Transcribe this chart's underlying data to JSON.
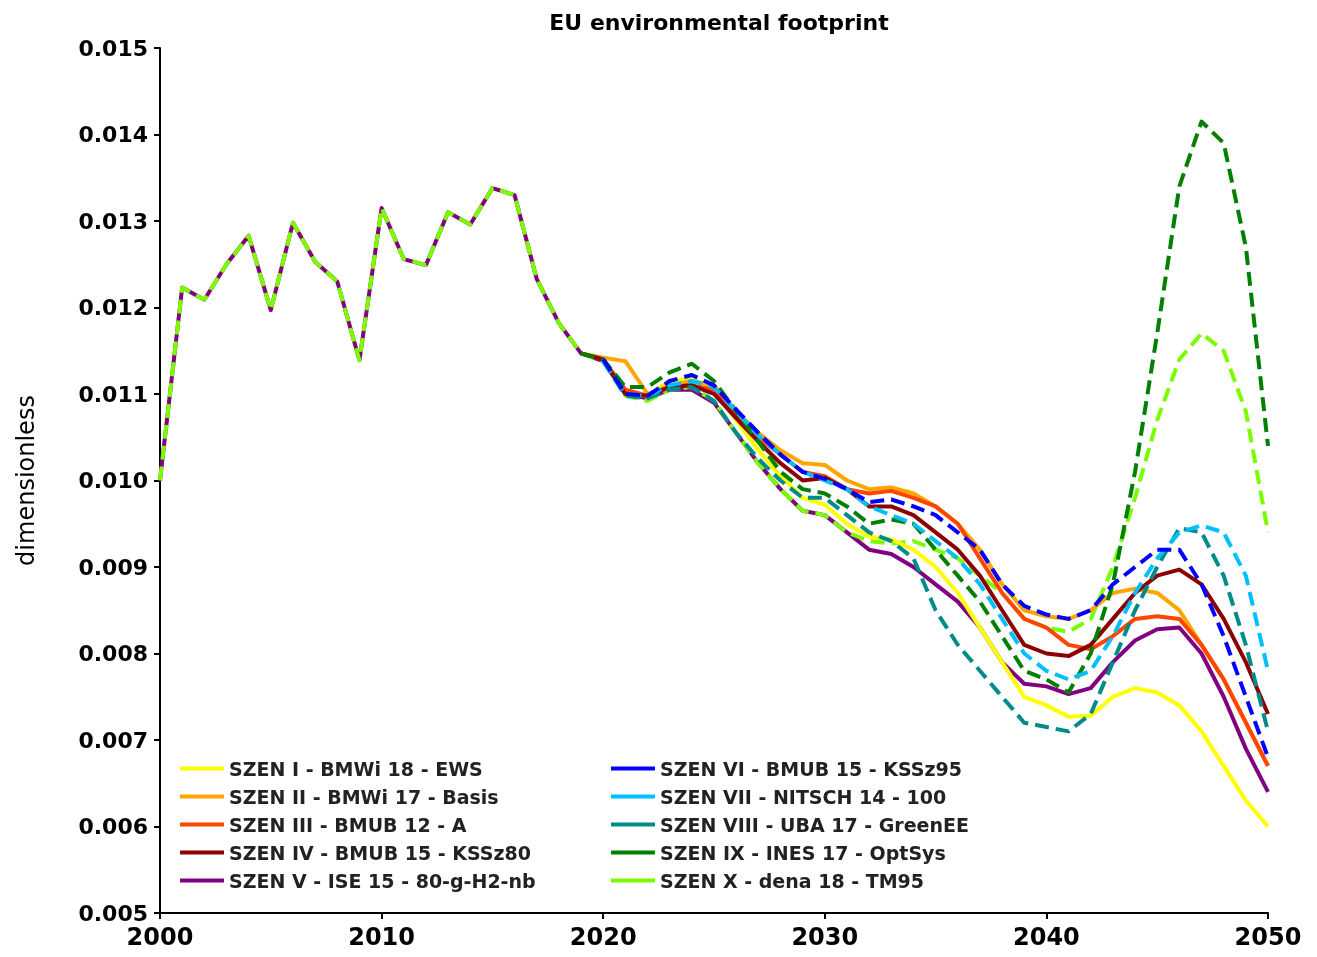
{
  "chart_data": {
    "type": "line",
    "title": "EU environmental footprint",
    "ylabel": "dimensionless",
    "x": [
      2000,
      2001,
      2002,
      2003,
      2004,
      2005,
      2006,
      2007,
      2008,
      2009,
      2010,
      2011,
      2012,
      2013,
      2014,
      2015,
      2016,
      2017,
      2018,
      2019,
      2020,
      2021,
      2022,
      2023,
      2024,
      2025,
      2026,
      2027,
      2028,
      2029,
      2030,
      2031,
      2032,
      2033,
      2034,
      2035,
      2036,
      2037,
      2038,
      2039,
      2040,
      2041,
      2042,
      2043,
      2044,
      2045,
      2046,
      2047,
      2048,
      2049,
      2050
    ],
    "xlim": [
      2000,
      2050
    ],
    "xticks": [
      2000,
      2010,
      2020,
      2030,
      2040,
      2050
    ],
    "ylim": [
      0.005,
      0.015
    ],
    "yticks": [
      {
        "value": 0.005,
        "label": "0.005"
      },
      {
        "value": 0.006,
        "label": "0.006"
      },
      {
        "value": 0.007,
        "label": "0.007"
      },
      {
        "value": 0.008,
        "label": "0.008"
      },
      {
        "value": 0.009,
        "label": "0.009"
      },
      {
        "value": 0.01,
        "label": "0.010"
      },
      {
        "value": 0.011,
        "label": "0.011"
      },
      {
        "value": 0.012,
        "label": "0.012"
      },
      {
        "value": 0.013,
        "label": "0.013"
      },
      {
        "value": 0.014,
        "label": "0.014"
      },
      {
        "value": 0.015,
        "label": "0.015"
      }
    ],
    "grid": false,
    "legend": "bottom left",
    "marker": "none",
    "series": [
      {
        "name": "SZEN I - BMWi 18 - EWS",
        "color": "#ffff00",
        "line_style": "solid",
        "values": [
          null,
          null,
          null,
          null,
          null,
          null,
          null,
          null,
          null,
          null,
          null,
          null,
          null,
          null,
          null,
          null,
          null,
          null,
          null,
          null,
          null,
          0.011,
          0.01098,
          0.01115,
          0.01118,
          0.01105,
          0.0107,
          0.01035,
          0.01005,
          0.0098,
          0.00972,
          0.0095,
          0.00935,
          0.00932,
          0.0092,
          0.009,
          0.0087,
          0.0083,
          0.0079,
          0.0075,
          0.0074,
          0.00727,
          0.00728,
          0.0075,
          0.0076,
          0.00755,
          0.0074,
          0.0071,
          0.0067,
          0.0063,
          0.006
        ]
      },
      {
        "name": "SZEN II - BMWi 17 - Basis",
        "color": "#ffa500",
        "line_style": "solid",
        "values": [
          null,
          null,
          null,
          null,
          null,
          null,
          null,
          null,
          null,
          null,
          null,
          null,
          null,
          null,
          null,
          null,
          null,
          null,
          null,
          0.01147,
          0.01142,
          0.01138,
          0.011,
          0.0111,
          0.01115,
          0.0111,
          0.0108,
          0.01055,
          0.01035,
          0.0102,
          0.01018,
          0.01,
          0.0099,
          0.00992,
          0.00985,
          0.0097,
          0.0095,
          0.0092,
          0.0088,
          0.0085,
          0.00843,
          0.0084,
          0.0085,
          0.0087,
          0.00875,
          0.0087,
          0.0085,
          0.0081,
          0.0077,
          0.0072,
          0.0067
        ]
      },
      {
        "name": "SZEN III - BMUB 12 - A",
        "color": "#ff4500",
        "line_style": "solid",
        "values": [
          null,
          null,
          null,
          null,
          null,
          null,
          null,
          null,
          null,
          null,
          null,
          null,
          null,
          null,
          null,
          null,
          null,
          null,
          null,
          0.01147,
          0.0114,
          0.01105,
          0.01098,
          0.01108,
          0.0111,
          0.01105,
          0.01075,
          0.0105,
          0.0103,
          0.0101,
          0.01005,
          0.0099,
          0.00985,
          0.00988,
          0.0098,
          0.0097,
          0.0095,
          0.0091,
          0.0087,
          0.0084,
          0.0083,
          0.0081,
          0.00805,
          0.0082,
          0.0084,
          0.00843,
          0.0084,
          0.0081,
          0.0077,
          0.0072,
          0.0067
        ]
      },
      {
        "name": "SZEN IV - BMUB 15 - KSSz80",
        "color": "#8b0000",
        "line_style": "solid",
        "values": [
          null,
          null,
          null,
          null,
          null,
          null,
          null,
          null,
          null,
          null,
          null,
          null,
          null,
          null,
          null,
          null,
          null,
          null,
          null,
          0.01147,
          0.0114,
          0.011,
          0.01098,
          0.01108,
          0.0111,
          0.011,
          0.01072,
          0.01045,
          0.0102,
          0.01,
          0.01003,
          0.0099,
          0.0097,
          0.0097,
          0.0096,
          0.0094,
          0.0092,
          0.0089,
          0.0085,
          0.0081,
          0.008,
          0.00797,
          0.0081,
          0.0084,
          0.0087,
          0.0089,
          0.00897,
          0.0088,
          0.0084,
          0.0079,
          0.0073
        ]
      },
      {
        "name": "SZEN V - ISE 15 - 80-g-H2-nb",
        "color": "#800080",
        "line_style": "solid",
        "values": [
          0.01,
          0.01223,
          0.01209,
          0.0125,
          0.01283,
          0.01197,
          0.01298,
          0.01253,
          0.0123,
          0.01139,
          0.01315,
          0.01256,
          0.01249,
          0.0131,
          0.01296,
          0.01338,
          0.0133,
          0.01233,
          0.01182,
          0.01147,
          0.01138,
          0.011,
          0.01095,
          0.01105,
          0.01105,
          0.0109,
          0.01055,
          0.0102,
          0.0099,
          0.00965,
          0.0096,
          0.0094,
          0.0092,
          0.00915,
          0.009,
          0.0088,
          0.0086,
          0.0083,
          0.0079,
          0.00765,
          0.00762,
          0.00753,
          0.0076,
          0.0079,
          0.00815,
          0.00828,
          0.0083,
          0.008,
          0.0075,
          0.0069,
          0.0064
        ]
      },
      {
        "name": "SZEN VI - BMUB 15 - KSSz95",
        "color": "#0000ff",
        "line_style": "dashed",
        "values": [
          null,
          null,
          null,
          null,
          null,
          null,
          null,
          null,
          null,
          null,
          null,
          null,
          null,
          null,
          null,
          null,
          null,
          null,
          null,
          null,
          0.0114,
          0.011,
          0.01098,
          0.01115,
          0.01122,
          0.0111,
          0.01082,
          0.01055,
          0.0103,
          0.0101,
          0.01002,
          0.0099,
          0.00975,
          0.00978,
          0.0097,
          0.0096,
          0.0094,
          0.0092,
          0.0088,
          0.00855,
          0.00845,
          0.0084,
          0.0085,
          0.0088,
          0.009,
          0.0092,
          0.0092,
          0.0088,
          0.0082,
          0.0075,
          0.0068
        ]
      },
      {
        "name": "SZEN VII - NITSCH 14 - 100",
        "color": "#00bfff",
        "line_style": "dashed",
        "values": [
          null,
          null,
          null,
          null,
          null,
          null,
          null,
          null,
          null,
          null,
          null,
          null,
          null,
          null,
          null,
          null,
          null,
          null,
          null,
          null,
          0.01138,
          0.011,
          0.01098,
          0.0111,
          0.01115,
          0.01108,
          0.0108,
          0.01052,
          0.0103,
          0.0101,
          0.01,
          0.0099,
          0.0097,
          0.0096,
          0.0095,
          0.0093,
          0.0091,
          0.0088,
          0.0084,
          0.008,
          0.0078,
          0.0077,
          0.0078,
          0.0082,
          0.0087,
          0.0091,
          0.0094,
          0.00948,
          0.0094,
          0.0089,
          0.0078
        ]
      },
      {
        "name": "SZEN VIII - UBA 17 - GreenEE",
        "color": "#008b8b",
        "line_style": "dashed",
        "values": [
          null,
          null,
          null,
          null,
          null,
          null,
          null,
          null,
          null,
          null,
          null,
          null,
          null,
          null,
          null,
          null,
          null,
          null,
          null,
          null,
          0.01138,
          0.01098,
          0.01095,
          0.01105,
          0.01108,
          0.01092,
          0.01055,
          0.01025,
          0.01,
          0.0098,
          0.0098,
          0.0096,
          0.0094,
          0.0093,
          0.0091,
          0.0085,
          0.0081,
          0.0078,
          0.0075,
          0.0072,
          0.00715,
          0.0071,
          0.0073,
          0.0079,
          0.0085,
          0.009,
          0.00945,
          0.0094,
          0.0089,
          0.0081,
          0.0071
        ]
      },
      {
        "name": "SZEN IX - INES 17 - OptSys",
        "color": "#008000",
        "line_style": "dashed",
        "values": [
          null,
          null,
          null,
          null,
          null,
          null,
          null,
          null,
          null,
          null,
          null,
          null,
          null,
          null,
          null,
          null,
          null,
          null,
          null,
          0.01147,
          0.0114,
          0.01108,
          0.01108,
          0.01125,
          0.01135,
          0.01115,
          0.0108,
          0.01045,
          0.0101,
          0.0099,
          0.00985,
          0.0097,
          0.0095,
          0.00955,
          0.0095,
          0.0092,
          0.0089,
          0.0086,
          0.0082,
          0.0078,
          0.0077,
          0.00755,
          0.008,
          0.0088,
          0.0101,
          0.0117,
          0.0134,
          0.01415,
          0.0139,
          0.0127,
          0.0104
        ]
      },
      {
        "name": "SZEN X - dena 18 - TM95",
        "color": "#7cfc00",
        "line_style": "dashed",
        "values": [
          0.01,
          0.01223,
          0.01209,
          0.0125,
          0.01283,
          0.01197,
          0.01298,
          0.01253,
          0.0123,
          0.01139,
          0.01315,
          0.01256,
          0.01249,
          0.0131,
          0.01296,
          0.01338,
          0.0133,
          0.01233,
          0.01182,
          0.01147,
          0.01138,
          0.01098,
          0.01092,
          0.01105,
          0.01108,
          0.01092,
          0.01055,
          0.0102,
          0.0099,
          0.00965,
          0.0096,
          0.0094,
          0.0093,
          0.00927,
          0.0093,
          0.0092,
          0.0091,
          0.0089,
          0.0087,
          0.0084,
          0.0083,
          0.00825,
          0.0084,
          0.009,
          0.0098,
          0.0107,
          0.0114,
          0.0117,
          0.0115,
          0.0108,
          0.0094
        ]
      }
    ]
  }
}
